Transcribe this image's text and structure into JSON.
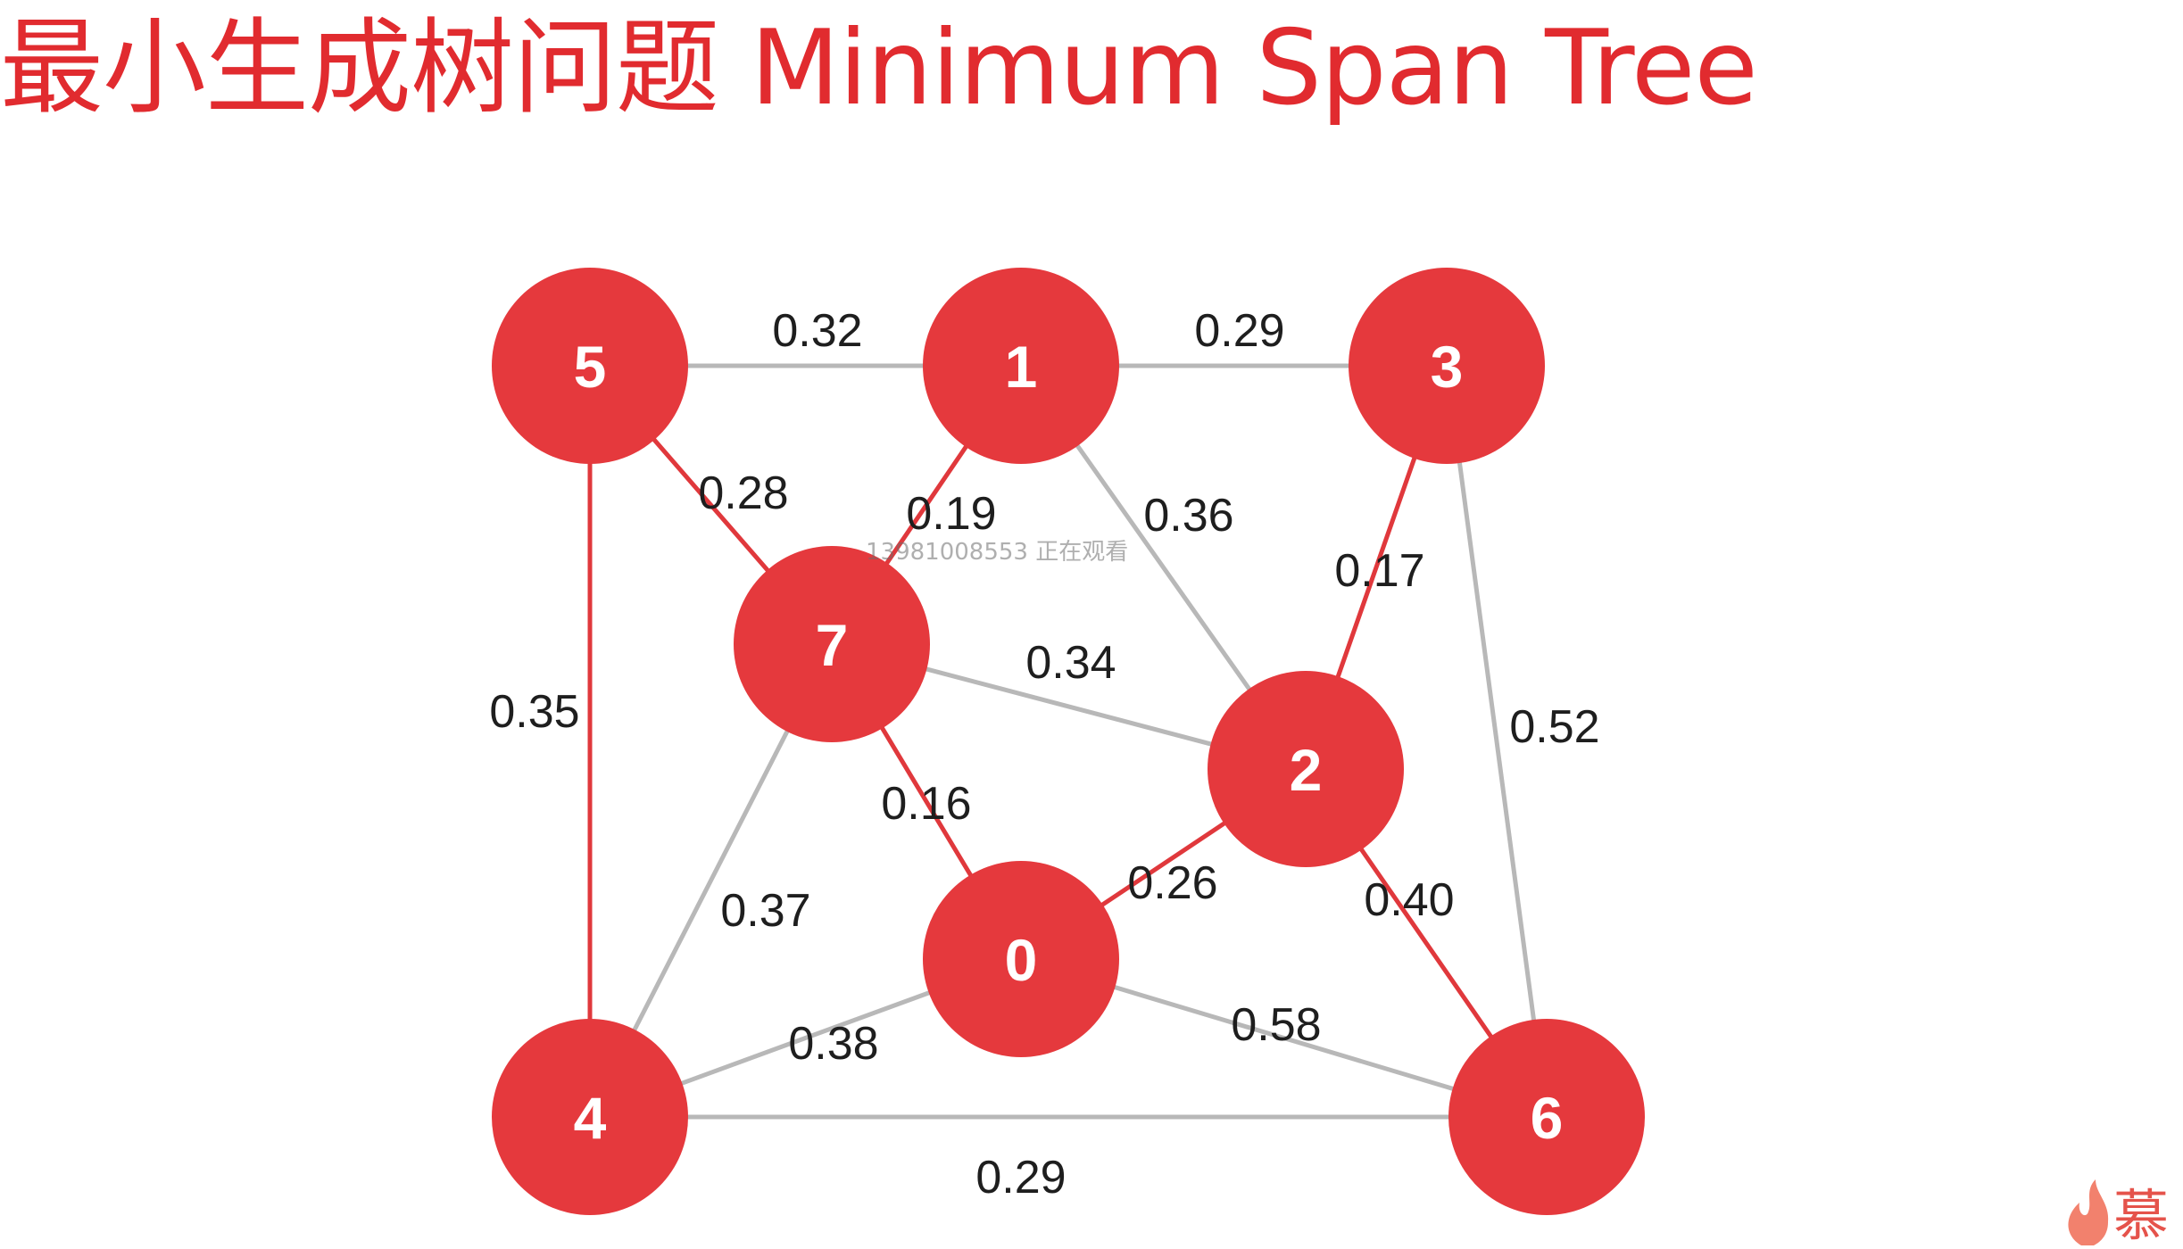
{
  "title": "最小生成树问题 Minimum Span Tree",
  "watermark": "13981008553  正在观看",
  "colors": {
    "title": "#e12b2f",
    "node_fill": "#e5393d",
    "mst_edge": "#e0383c",
    "other_edge": "#b8b8b8",
    "edge_label": "#1e1e1e",
    "node_label": "#ffffff"
  },
  "graph": {
    "nodes": [
      {
        "id": 0,
        "label": "0"
      },
      {
        "id": 1,
        "label": "1"
      },
      {
        "id": 2,
        "label": "2"
      },
      {
        "id": 3,
        "label": "3"
      },
      {
        "id": 4,
        "label": "4"
      },
      {
        "id": 5,
        "label": "5"
      },
      {
        "id": 6,
        "label": "6"
      },
      {
        "id": 7,
        "label": "7"
      }
    ],
    "edges": [
      {
        "from": 5,
        "to": 1,
        "weight": "0.32",
        "in_mst": false
      },
      {
        "from": 1,
        "to": 3,
        "weight": "0.29",
        "in_mst": false
      },
      {
        "from": 1,
        "to": 2,
        "weight": "0.36",
        "in_mst": false
      },
      {
        "from": 7,
        "to": 2,
        "weight": "0.34",
        "in_mst": false
      },
      {
        "from": 7,
        "to": 4,
        "weight": "0.37",
        "in_mst": false
      },
      {
        "from": 0,
        "to": 4,
        "weight": "0.38",
        "in_mst": false
      },
      {
        "from": 0,
        "to": 6,
        "weight": "0.58",
        "in_mst": false
      },
      {
        "from": 4,
        "to": 6,
        "weight": "0.29",
        "in_mst": false
      },
      {
        "from": 3,
        "to": 6,
        "weight": "0.52",
        "in_mst": false
      },
      {
        "from": 5,
        "to": 7,
        "weight": "0.28",
        "in_mst": true
      },
      {
        "from": 1,
        "to": 7,
        "weight": "0.19",
        "in_mst": true
      },
      {
        "from": 5,
        "to": 4,
        "weight": "0.35",
        "in_mst": true
      },
      {
        "from": 7,
        "to": 0,
        "weight": "0.16",
        "in_mst": true
      },
      {
        "from": 0,
        "to": 2,
        "weight": "0.26",
        "in_mst": true
      },
      {
        "from": 3,
        "to": 2,
        "weight": "0.17",
        "in_mst": true
      },
      {
        "from": 2,
        "to": 6,
        "weight": "0.40",
        "in_mst": true
      }
    ]
  },
  "corner_logo": {
    "icon": "flame-logo-icon",
    "text": "慕"
  }
}
